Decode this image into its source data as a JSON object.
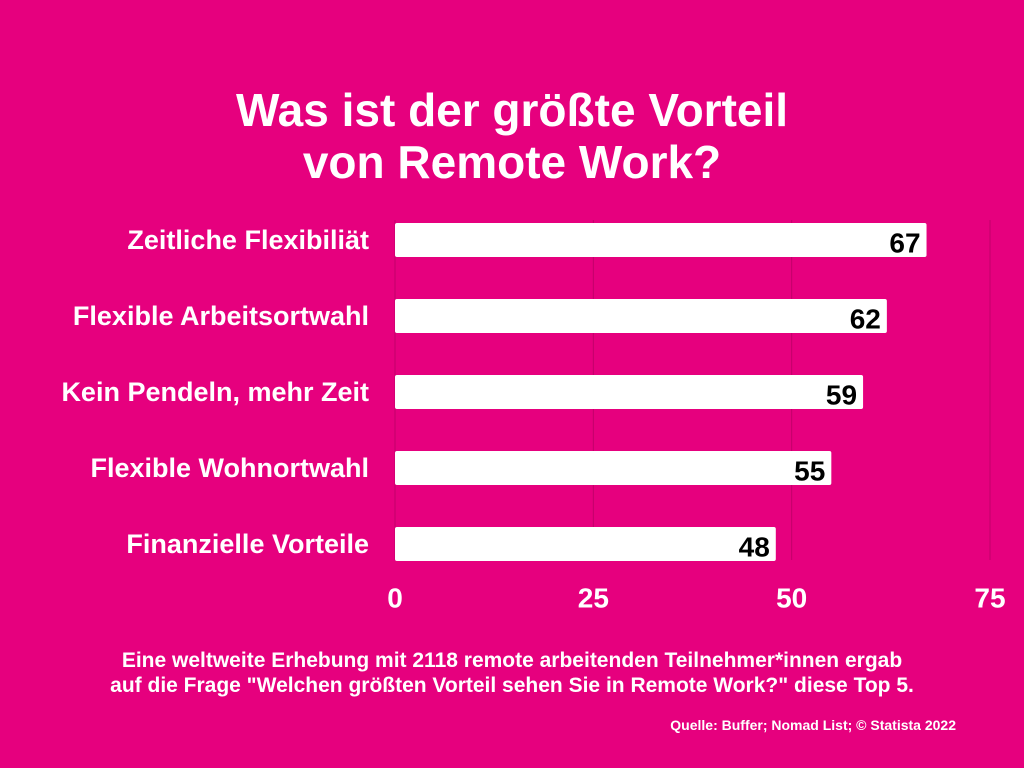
{
  "title_lines": [
    "Was ist der größte Vorteil",
    "von Remote Work?"
  ],
  "note_lines": [
    "Eine weltweite Erhebung mit 2118 remote arbeitenden Teilnehmer*innen ergab",
    "auf die Frage \"Welchen größten Vorteil sehen Sie in Remote Work?\" diese Top 5."
  ],
  "source": "Quelle: Buffer; Nomad List; © Statista 2022",
  "colors": {
    "background": "#e6007e",
    "bar": "#ffffff",
    "value_label": "#000000",
    "gridline": "#c2006a"
  },
  "chart_data": {
    "type": "bar",
    "orientation": "horizontal",
    "title": "Was ist der größte Vorteil von Remote Work?",
    "categories": [
      "Zeitliche Flexibiliät",
      "Flexible Arbeitsortwahl",
      "Kein Pendeln, mehr Zeit",
      "Flexible Wohnortwahl",
      "Finanzielle Vorteile"
    ],
    "values": [
      67,
      62,
      59,
      55,
      48
    ],
    "xlim": [
      0,
      75
    ],
    "xticks": [
      0,
      25,
      50,
      75
    ],
    "grid": true,
    "legend": "none",
    "xlabel": "",
    "ylabel": ""
  }
}
